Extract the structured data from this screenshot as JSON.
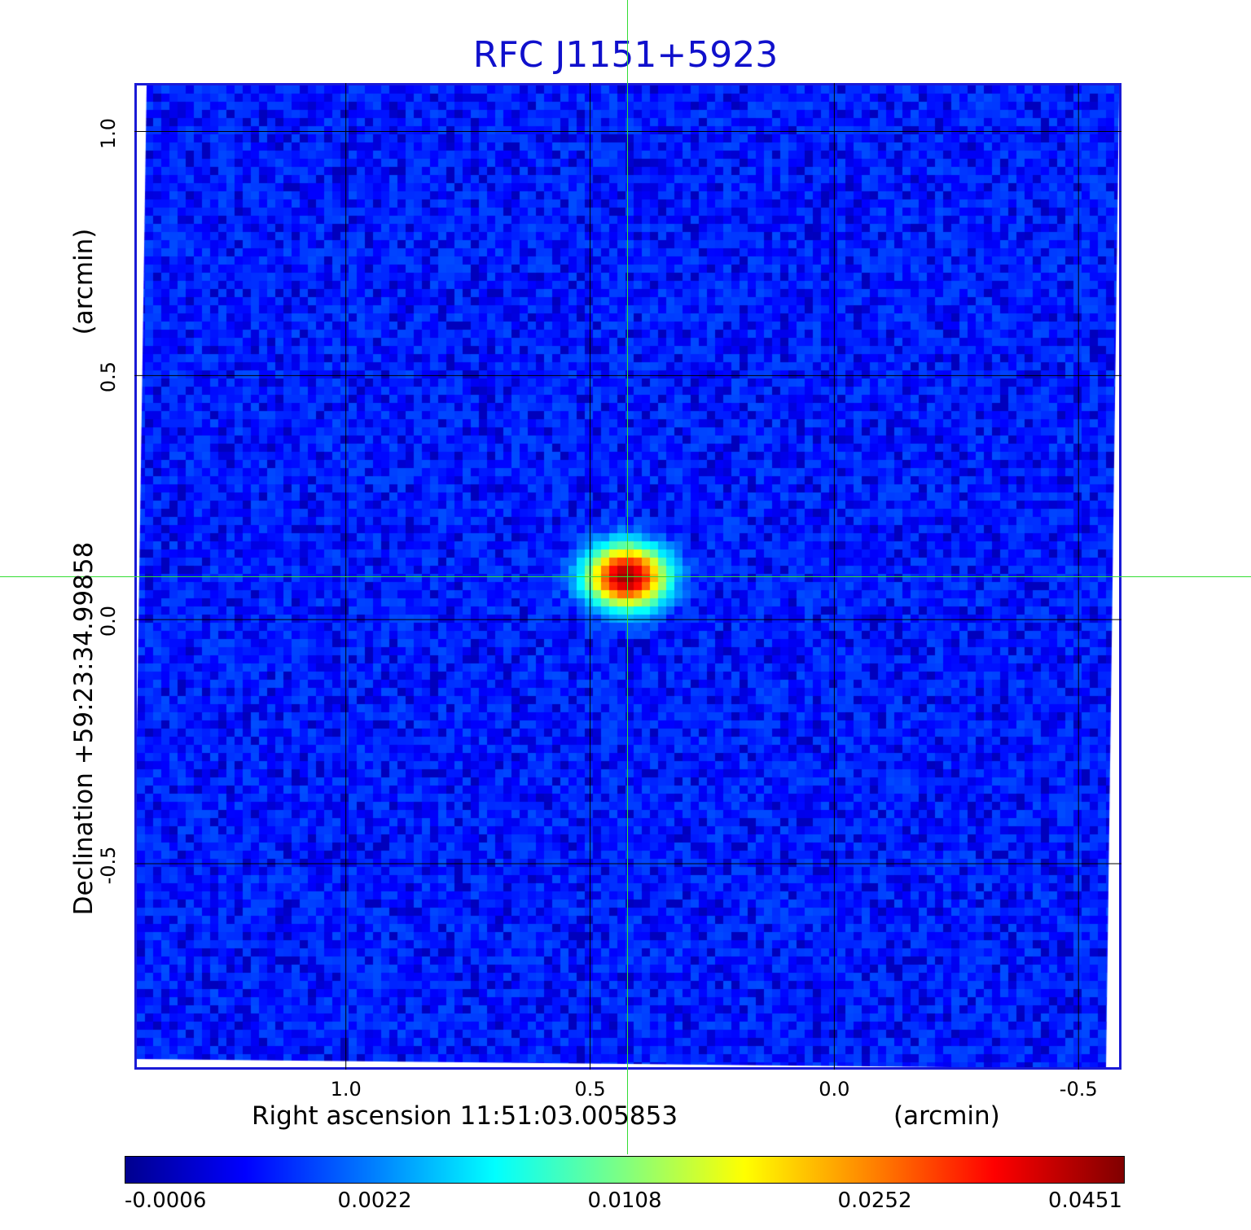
{
  "chart_data": {
    "type": "heatmap",
    "title": "RFC J1151+5923",
    "xlabel": "Right ascension  11:51:03.005853",
    "xunit": "(arcmin)",
    "ylabel": "Declination  +59:23:34.99858",
    "yunit": "(arcmin)",
    "x_ticks": [
      "1.0",
      "0.5",
      "0.0",
      "-0.5"
    ],
    "x_tick_values": [
      1.0,
      0.5,
      0.0,
      -0.5
    ],
    "y_ticks": [
      "1.0",
      "0.5",
      "0.0",
      "-0.5"
    ],
    "y_tick_values": [
      1.0,
      0.5,
      0.0,
      -0.5
    ],
    "xlim": [
      1.433,
      -0.588
    ],
    "ylim": [
      -0.922,
      1.0993
    ],
    "grid": true,
    "colormap": "jet",
    "colorbar_ticks": [
      "-0.0006",
      "0.0022",
      "0.0108",
      "0.0252",
      "0.0451"
    ],
    "colorbar_tick_values": [
      -0.0006,
      0.0022,
      0.0108,
      0.0252,
      0.0451
    ],
    "peak": {
      "x": 0.425,
      "y": 0.088,
      "value": 0.0451
    },
    "crosshair": {
      "x": 0.425,
      "y": 0.088
    },
    "noise_level": 0.0008
  },
  "colors": {
    "title": "#1010cc",
    "frame": "#1a1ad6",
    "crosshair": "#33dd33",
    "background_map": "#1a40f0"
  }
}
